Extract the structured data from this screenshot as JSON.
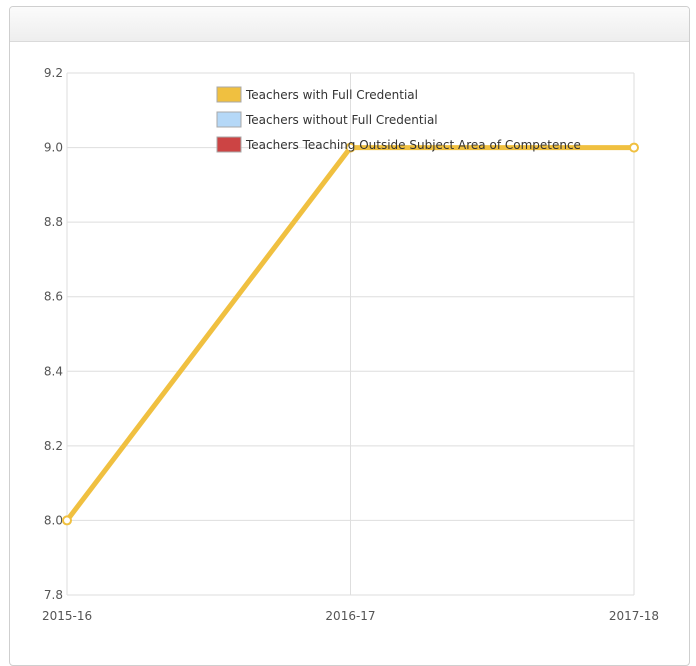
{
  "chart_data": {
    "type": "line",
    "categories": [
      "2015-16",
      "2016-17",
      "2017-18"
    ],
    "ylim": [
      7.8,
      9.2
    ],
    "yticks": [
      "9.2",
      "9.0",
      "8.8",
      "8.6",
      "8.4",
      "8.2",
      "8.0",
      "7.8"
    ],
    "ytick_values": [
      9.2,
      9.0,
      8.8,
      8.6,
      8.4,
      8.2,
      8.0,
      7.8
    ],
    "series": [
      {
        "name": "Teachers with Full Credential",
        "color": "#f0c040",
        "values": [
          8.0,
          9.0,
          9.0
        ]
      },
      {
        "name": "Teachers without Full Credential",
        "color": "#b5d8f7",
        "values": [
          null,
          null,
          null
        ]
      },
      {
        "name": "Teachers Teaching Outside Subject Area of Competence",
        "color": "#cc4444",
        "values": [
          null,
          null,
          null
        ]
      }
    ],
    "legend_position": "top-right",
    "grid": true
  }
}
